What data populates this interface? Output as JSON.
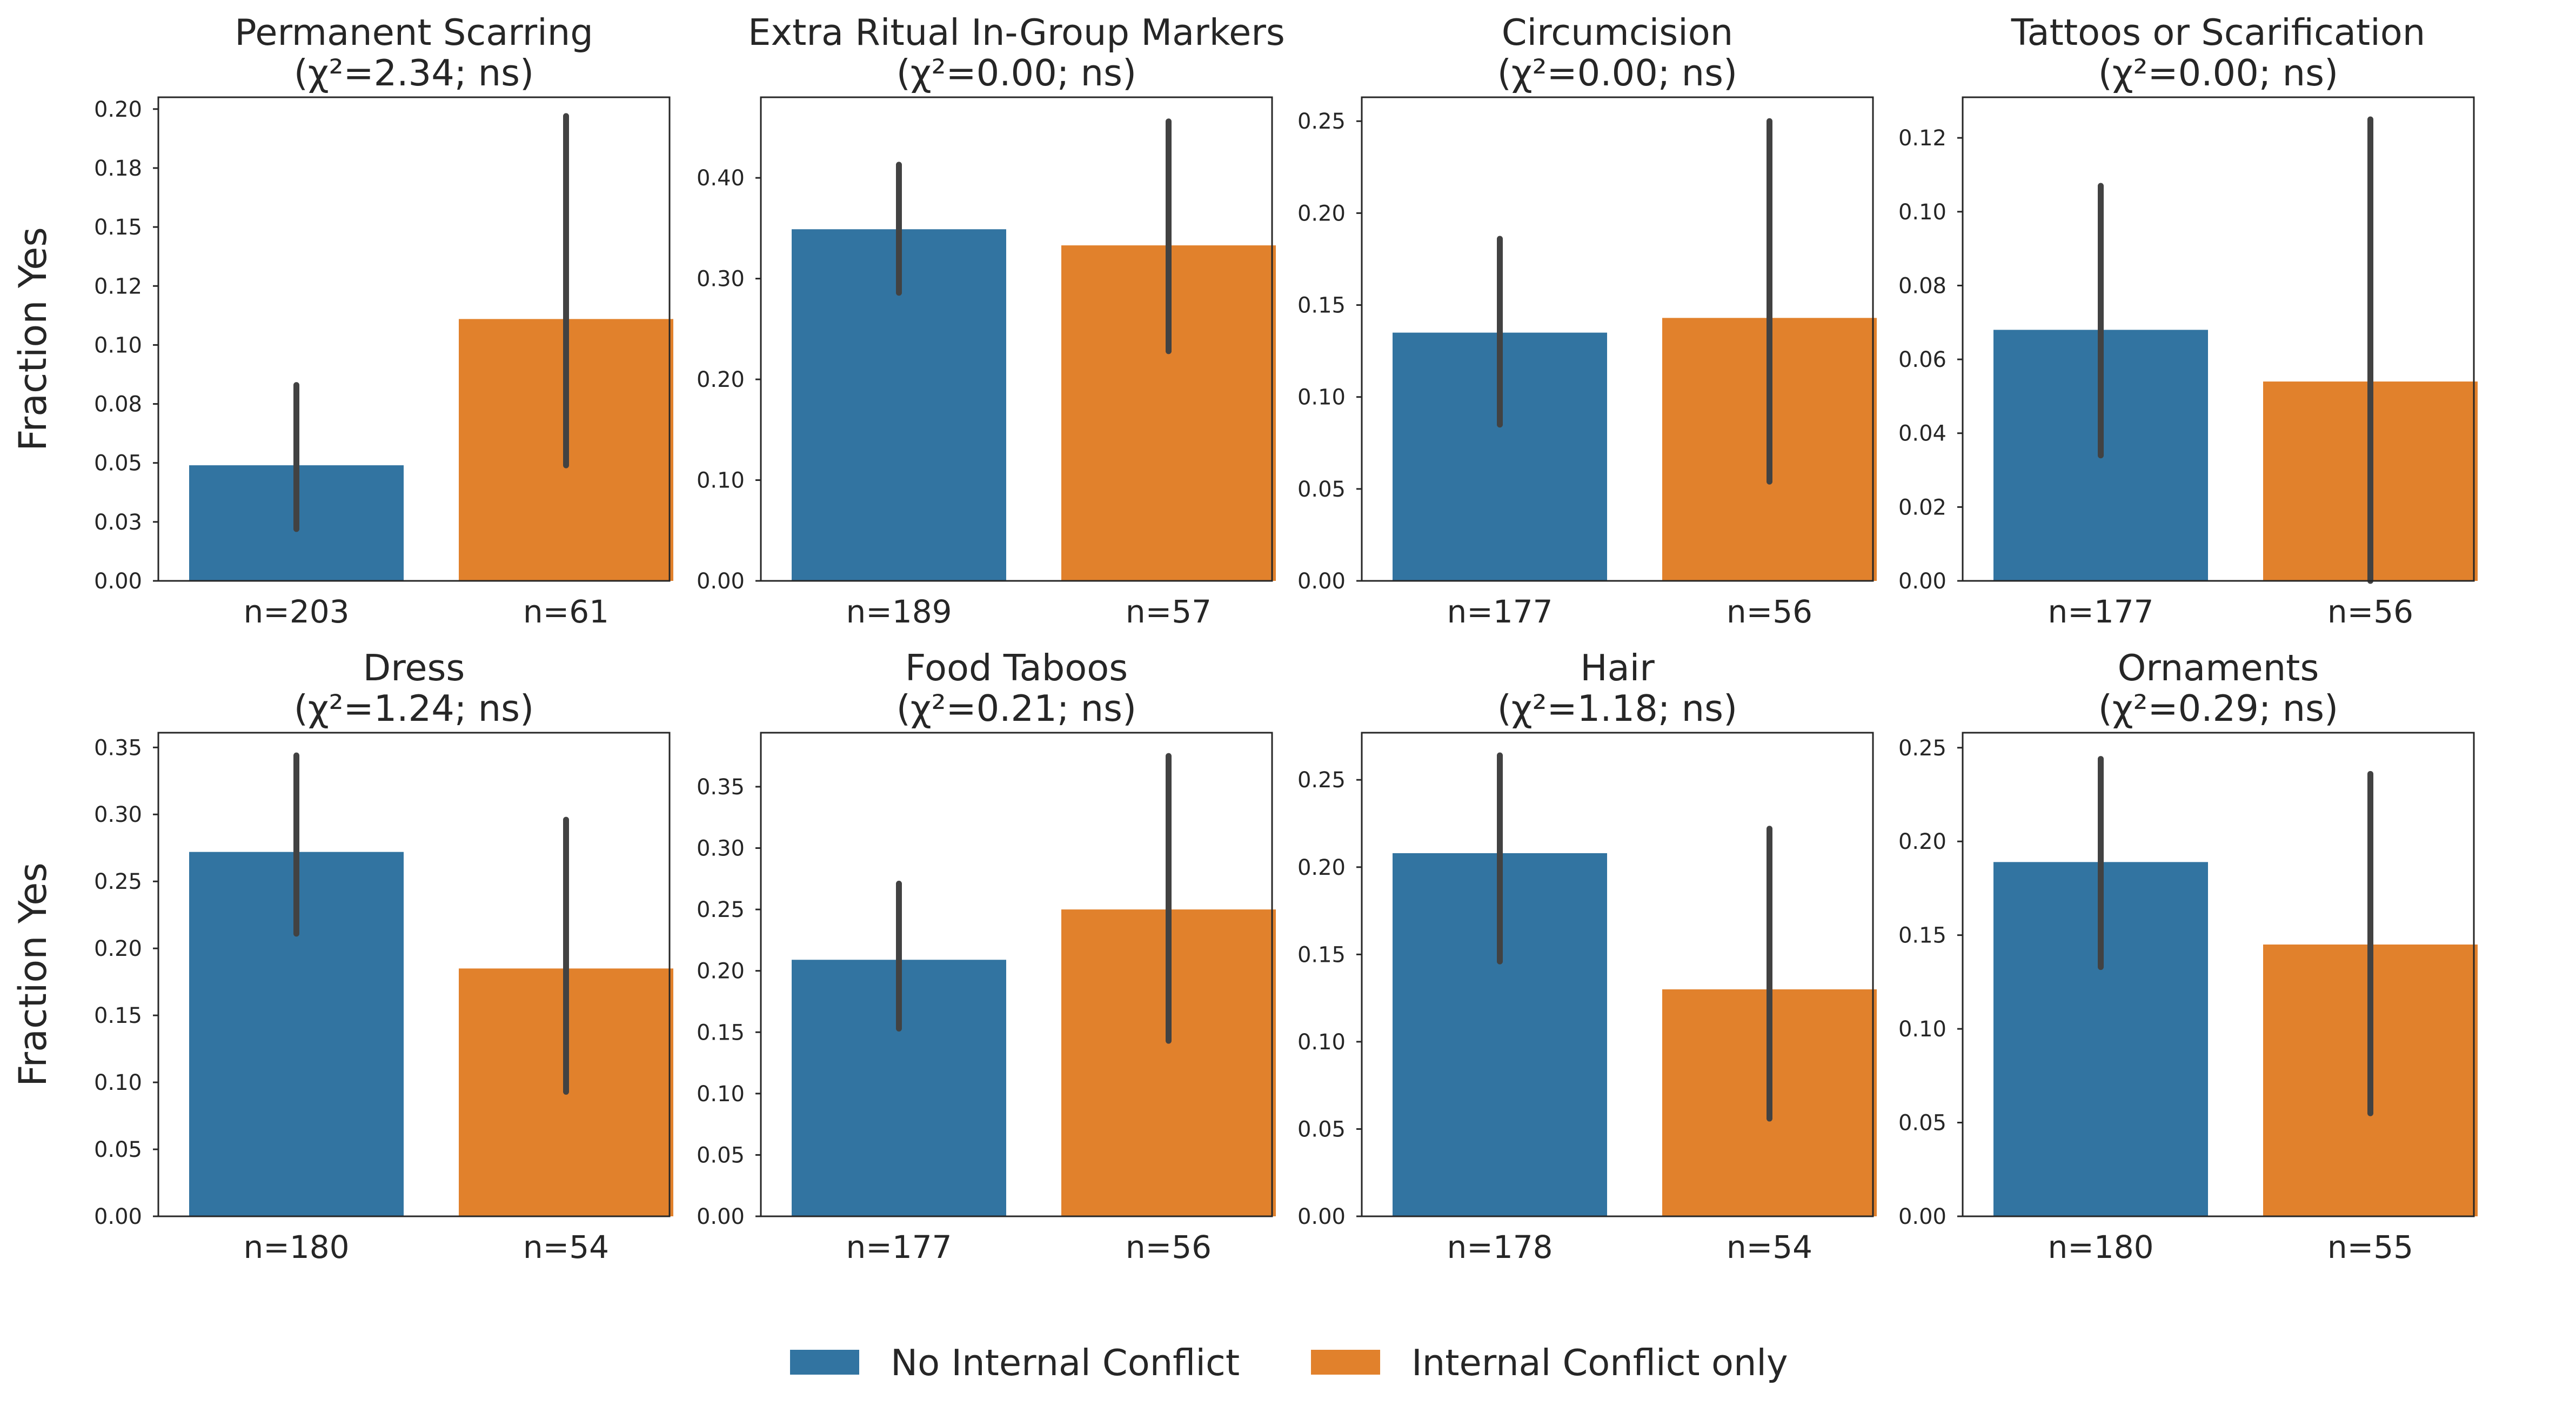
{
  "legend": {
    "placement": "bottom-center",
    "items": [
      {
        "label": "No Internal Conflict",
        "color": "#3274a1"
      },
      {
        "label": "Internal Conflict only",
        "color": "#e1812c"
      }
    ]
  },
  "chart_data": [
    {
      "type": "bar",
      "title": "Permanent Scarring",
      "subtitle": "(χ²=2.34; ns)",
      "ylabel": "Fraction Yes",
      "categories": [
        "n=203",
        "n=61"
      ],
      "values": [
        0.049,
        0.111
      ],
      "ci_low": [
        0.022,
        0.049
      ],
      "ci_high": [
        0.083,
        0.197
      ],
      "ylim": [
        0,
        0.205
      ],
      "yticks": [
        0,
        0.025,
        0.05,
        0.075,
        0.1,
        0.125,
        0.15,
        0.175,
        0.2
      ],
      "yticklabels": [
        "0.00",
        "0.03",
        "0.05",
        "0.08",
        "0.10",
        "0.12",
        "0.15",
        "0.18",
        "0.20"
      ],
      "grid": false
    },
    {
      "type": "bar",
      "title": "Extra Ritual In-Group Markers",
      "subtitle": "(χ²=0.00; ns)",
      "ylabel": "",
      "categories": [
        "n=189",
        "n=57"
      ],
      "values": [
        0.349,
        0.333
      ],
      "ci_low": [
        0.286,
        0.228
      ],
      "ci_high": [
        0.413,
        0.456
      ],
      "ylim": [
        0,
        0.48
      ],
      "yticks": [
        0,
        0.1,
        0.2,
        0.3,
        0.4
      ],
      "yticklabels": [
        "0.00",
        "0.10",
        "0.20",
        "0.30",
        "0.40"
      ],
      "grid": false
    },
    {
      "type": "bar",
      "title": "Circumcision",
      "subtitle": "(χ²=0.00; ns)",
      "ylabel": "",
      "categories": [
        "n=177",
        "n=56"
      ],
      "values": [
        0.135,
        0.143
      ],
      "ci_low": [
        0.085,
        0.054
      ],
      "ci_high": [
        0.186,
        0.25
      ],
      "ylim": [
        0,
        0.263
      ],
      "yticks": [
        0,
        0.05,
        0.1,
        0.15,
        0.2,
        0.25
      ],
      "yticklabels": [
        "0.00",
        "0.05",
        "0.10",
        "0.15",
        "0.20",
        "0.25"
      ],
      "grid": false
    },
    {
      "type": "bar",
      "title": "Tattoos or Scarification",
      "subtitle": "(χ²=0.00; ns)",
      "ylabel": "",
      "categories": [
        "n=177",
        "n=56"
      ],
      "values": [
        0.068,
        0.054
      ],
      "ci_low": [
        0.034,
        0.0
      ],
      "ci_high": [
        0.107,
        0.125
      ],
      "ylim": [
        0,
        0.131
      ],
      "yticks": [
        0,
        0.02,
        0.04,
        0.06,
        0.08,
        0.1,
        0.12
      ],
      "yticklabels": [
        "0.00",
        "0.02",
        "0.04",
        "0.06",
        "0.08",
        "0.10",
        "0.12"
      ],
      "grid": false
    },
    {
      "type": "bar",
      "title": "Dress",
      "subtitle": "(χ²=1.24; ns)",
      "ylabel": "Fraction Yes",
      "categories": [
        "n=180",
        "n=54"
      ],
      "values": [
        0.272,
        0.185
      ],
      "ci_low": [
        0.211,
        0.093
      ],
      "ci_high": [
        0.344,
        0.296
      ],
      "ylim": [
        0,
        0.361
      ],
      "yticks": [
        0,
        0.05,
        0.1,
        0.15,
        0.2,
        0.25,
        0.3,
        0.35
      ],
      "yticklabels": [
        "0.00",
        "0.05",
        "0.10",
        "0.15",
        "0.20",
        "0.25",
        "0.30",
        "0.35"
      ],
      "grid": false
    },
    {
      "type": "bar",
      "title": "Food Taboos",
      "subtitle": "(χ²=0.21; ns)",
      "ylabel": "",
      "categories": [
        "n=177",
        "n=56"
      ],
      "values": [
        0.209,
        0.25
      ],
      "ci_low": [
        0.153,
        0.143
      ],
      "ci_high": [
        0.271,
        0.375
      ],
      "ylim": [
        0,
        0.394
      ],
      "yticks": [
        0,
        0.05,
        0.1,
        0.15,
        0.2,
        0.25,
        0.3,
        0.35
      ],
      "yticklabels": [
        "0.00",
        "0.05",
        "0.10",
        "0.15",
        "0.20",
        "0.25",
        "0.30",
        "0.35"
      ],
      "grid": false
    },
    {
      "type": "bar",
      "title": "Hair",
      "subtitle": "(χ²=1.18; ns)",
      "ylabel": "",
      "categories": [
        "n=178",
        "n=54"
      ],
      "values": [
        0.208,
        0.13
      ],
      "ci_low": [
        0.146,
        0.056
      ],
      "ci_high": [
        0.264,
        0.222
      ],
      "ylim": [
        0,
        0.277
      ],
      "yticks": [
        0,
        0.05,
        0.1,
        0.15,
        0.2,
        0.25
      ],
      "yticklabels": [
        "0.00",
        "0.05",
        "0.10",
        "0.15",
        "0.20",
        "0.25"
      ],
      "grid": false
    },
    {
      "type": "bar",
      "title": "Ornaments",
      "subtitle": "(χ²=0.29; ns)",
      "ylabel": "",
      "categories": [
        "n=180",
        "n=55"
      ],
      "values": [
        0.189,
        0.145
      ],
      "ci_low": [
        0.133,
        0.055
      ],
      "ci_high": [
        0.244,
        0.236
      ],
      "ylim": [
        0,
        0.258
      ],
      "yticks": [
        0,
        0.05,
        0.1,
        0.15,
        0.2,
        0.25
      ],
      "yticklabels": [
        "0.00",
        "0.05",
        "0.10",
        "0.15",
        "0.20",
        "0.25"
      ],
      "grid": false
    }
  ]
}
